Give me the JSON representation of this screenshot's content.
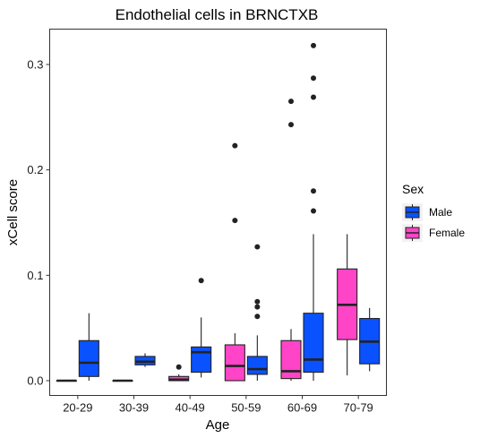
{
  "chart_data": {
    "type": "boxplot",
    "title": "Endothelial cells in BRNCTXB",
    "xlabel": "Age",
    "ylabel": "xCell score",
    "categories": [
      "20-29",
      "30-39",
      "40-49",
      "50-59",
      "60-69",
      "70-79"
    ],
    "ylim": [
      -0.015,
      0.335
    ],
    "yticks": [
      0.0,
      0.1,
      0.2,
      0.3
    ],
    "ytick_labels": [
      "0.0",
      "0.1",
      "0.2",
      "0.3"
    ],
    "grid": false,
    "legend": {
      "title": "Sex",
      "placement": "right",
      "entries": [
        {
          "label": "Male",
          "color": "#0A52FF"
        },
        {
          "label": "Female",
          "color": "#FF44C8"
        }
      ]
    },
    "series": [
      {
        "name": "Female",
        "color": "#FF44C8",
        "boxes": [
          {
            "category": "20-29",
            "min": 0.0,
            "q1": 0.0,
            "median": 0.0,
            "q3": 0.0,
            "max": 0.0,
            "outliers": []
          },
          {
            "category": "30-39",
            "min": 0.0,
            "q1": 0.0,
            "median": 0.0,
            "q3": 0.0,
            "max": 0.0,
            "outliers": []
          },
          {
            "category": "40-49",
            "min": 0.0,
            "q1": 0.0,
            "median": 0.001,
            "q3": 0.004,
            "max": 0.006,
            "outliers": [
              0.013
            ]
          },
          {
            "category": "50-59",
            "min": 0.0,
            "q1": 0.0,
            "median": 0.014,
            "q3": 0.034,
            "max": 0.045,
            "outliers": [
              0.152,
              0.223
            ]
          },
          {
            "category": "60-69",
            "min": 0.0,
            "q1": 0.002,
            "median": 0.009,
            "q3": 0.038,
            "max": 0.049,
            "outliers": [
              0.243,
              0.265
            ]
          },
          {
            "category": "70-79",
            "min": 0.005,
            "q1": 0.039,
            "median": 0.072,
            "q3": 0.106,
            "max": 0.139,
            "outliers": []
          }
        ]
      },
      {
        "name": "Male",
        "color": "#0A52FF",
        "boxes": [
          {
            "category": "20-29",
            "min": 0.0,
            "q1": 0.004,
            "median": 0.017,
            "q3": 0.038,
            "max": 0.064,
            "outliers": []
          },
          {
            "category": "30-39",
            "min": 0.013,
            "q1": 0.015,
            "median": 0.018,
            "q3": 0.023,
            "max": 0.026,
            "outliers": []
          },
          {
            "category": "40-49",
            "min": 0.003,
            "q1": 0.008,
            "median": 0.027,
            "q3": 0.032,
            "max": 0.06,
            "outliers": [
              0.095
            ]
          },
          {
            "category": "50-59",
            "min": 0.0,
            "q1": 0.006,
            "median": 0.011,
            "q3": 0.023,
            "max": 0.043,
            "outliers": [
              0.061,
              0.07,
              0.075,
              0.127
            ]
          },
          {
            "category": "60-69",
            "min": 0.0,
            "q1": 0.008,
            "median": 0.02,
            "q3": 0.064,
            "max": 0.139,
            "outliers": [
              0.161,
              0.18,
              0.269,
              0.287,
              0.318
            ]
          },
          {
            "category": "70-79",
            "min": 0.009,
            "q1": 0.016,
            "median": 0.037,
            "q3": 0.059,
            "max": 0.069,
            "outliers": []
          }
        ]
      }
    ]
  }
}
